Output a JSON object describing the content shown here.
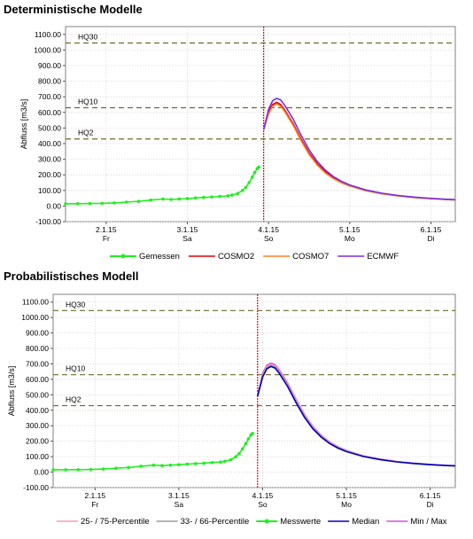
{
  "page": {
    "title_top": "Deterministische Modelle",
    "title_bottom": "Probabilistisches Modell"
  },
  "chart_data": [
    {
      "type": "line",
      "title": "Deterministische Modelle",
      "ylabel": "Abfluss [m3/s]",
      "ylim": [
        -100,
        1150
      ],
      "yticks": [
        -100,
        0,
        100,
        200,
        300,
        400,
        500,
        600,
        700,
        800,
        900,
        1000,
        1100
      ],
      "ytick_labels": [
        "-100.00",
        "0.00",
        "100.00",
        "200.00",
        "300.00",
        "400.00",
        "500.00",
        "600.00",
        "700.00",
        "800.00",
        "900.00",
        "1000.00",
        "1100.00"
      ],
      "xlim": [
        1.5,
        6.3
      ],
      "xticks": [
        2,
        3,
        4,
        5,
        6
      ],
      "xtick_dates": [
        "2.1.15",
        "3.1.15",
        "4.1.15",
        "5.1.15",
        "6.1.15"
      ],
      "xtick_days": [
        "Fr",
        "Sa",
        "So",
        "Mo",
        "Di"
      ],
      "grid": true,
      "forecast_start_x": 3.94,
      "thresholds": [
        {
          "name": "HQ30",
          "value": 1045,
          "color": "#6b6b2a"
        },
        {
          "name": "HQ10",
          "value": 630,
          "color": "#6b6b2a"
        },
        {
          "name": "HQ2",
          "value": 430,
          "color": "#6b6b2a"
        }
      ],
      "series": [
        {
          "name": "Gemessen",
          "color": "#22ee22",
          "markers": true,
          "x": [
            1.5,
            1.65,
            1.8,
            1.95,
            2.1,
            2.25,
            2.4,
            2.55,
            2.7,
            2.8,
            2.9,
            3.0,
            3.1,
            3.2,
            3.3,
            3.4,
            3.5,
            3.55,
            3.62,
            3.68,
            3.72,
            3.76,
            3.8,
            3.83,
            3.86,
            3.88
          ],
          "y": [
            15,
            15,
            16,
            17,
            20,
            25,
            30,
            38,
            45,
            42,
            45,
            48,
            52,
            55,
            58,
            62,
            65,
            70,
            80,
            100,
            120,
            150,
            185,
            215,
            240,
            250
          ]
        },
        {
          "name": "COSMO2",
          "color": "#e00000",
          "markers": false,
          "x": [
            3.94,
            4.0,
            4.05,
            4.1,
            4.15,
            4.2,
            4.3,
            4.4,
            4.5,
            4.6,
            4.7,
            4.8,
            4.9,
            5.0,
            5.2,
            5.4,
            5.6,
            5.8,
            6.0,
            6.2,
            6.3
          ],
          "y": [
            490,
            600,
            650,
            665,
            650,
            615,
            530,
            430,
            340,
            270,
            220,
            180,
            152,
            130,
            100,
            80,
            65,
            55,
            48,
            42,
            40
          ]
        },
        {
          "name": "COSMO7",
          "color": "#ff8020",
          "markers": false,
          "x": [
            3.94,
            4.0,
            4.05,
            4.1,
            4.15,
            4.2,
            4.3,
            4.4,
            4.5,
            4.6,
            4.7,
            4.8,
            4.9,
            5.0,
            5.2,
            5.4,
            5.6,
            5.8,
            6.0,
            6.2,
            6.3
          ],
          "y": [
            490,
            590,
            640,
            655,
            640,
            605,
            520,
            420,
            330,
            262,
            212,
            175,
            148,
            128,
            98,
            78,
            64,
            54,
            47,
            41,
            39
          ]
        },
        {
          "name": "ECMWF",
          "color": "#7a2de0",
          "markers": false,
          "x": [
            3.94,
            4.0,
            4.05,
            4.1,
            4.15,
            4.2,
            4.3,
            4.4,
            4.5,
            4.6,
            4.7,
            4.8,
            4.9,
            5.0,
            5.2,
            5.4,
            5.6,
            5.8,
            6.0,
            6.2,
            6.3
          ],
          "y": [
            490,
            620,
            675,
            690,
            680,
            645,
            560,
            455,
            360,
            285,
            230,
            188,
            158,
            135,
            103,
            82,
            67,
            57,
            49,
            43,
            41
          ]
        }
      ]
    },
    {
      "type": "line",
      "title": "Probabilistisches Modell",
      "ylabel": "Abfluss [m3/s]",
      "ylim": [
        -100,
        1150
      ],
      "yticks": [
        -100,
        0,
        100,
        200,
        300,
        400,
        500,
        600,
        700,
        800,
        900,
        1000,
        1100
      ],
      "ytick_labels": [
        "-100.00",
        "0.00",
        "100.00",
        "200.00",
        "300.00",
        "400.00",
        "500.00",
        "600.00",
        "700.00",
        "800.00",
        "900.00",
        "1000.00",
        "1100.00"
      ],
      "xlim": [
        1.5,
        6.3
      ],
      "xticks": [
        2,
        3,
        4,
        5,
        6
      ],
      "xtick_dates": [
        "2.1.15",
        "3.1.15",
        "4.1.15",
        "5.1.15",
        "6.1.15"
      ],
      "xtick_days": [
        "Fr",
        "Sa",
        "So",
        "Mo",
        "Di"
      ],
      "grid": true,
      "forecast_start_x": 3.94,
      "thresholds": [
        {
          "name": "HQ30",
          "value": 1045,
          "color": "#6b6b2a"
        },
        {
          "name": "HQ10",
          "value": 630,
          "color": "#6b6b2a"
        },
        {
          "name": "HQ2",
          "value": 430,
          "color": "#6b6b2a"
        }
      ],
      "legend": [
        {
          "name": "25- / 75-Percentile",
          "color": "#f2a0b0",
          "style": "line"
        },
        {
          "name": "33- / 66-Percentile",
          "color": "#9a9a9a",
          "style": "line"
        },
        {
          "name": "Messwerte",
          "color": "#22ee22",
          "style": "marker"
        },
        {
          "name": "Median",
          "color": "#0000c0",
          "style": "line"
        },
        {
          "name": "Min / Max",
          "color": "#d050d0",
          "style": "line"
        }
      ],
      "series": [
        {
          "name": "Messwerte",
          "color": "#22ee22",
          "markers": true,
          "x": [
            1.5,
            1.65,
            1.8,
            1.95,
            2.1,
            2.25,
            2.4,
            2.55,
            2.7,
            2.8,
            2.9,
            3.0,
            3.1,
            3.2,
            3.3,
            3.4,
            3.5,
            3.55,
            3.62,
            3.68,
            3.72,
            3.76,
            3.8,
            3.83,
            3.86,
            3.88
          ],
          "y": [
            15,
            15,
            16,
            17,
            20,
            25,
            30,
            38,
            45,
            42,
            45,
            48,
            52,
            55,
            58,
            62,
            65,
            70,
            80,
            100,
            120,
            150,
            185,
            215,
            240,
            250
          ]
        },
        {
          "name": "Min / Max",
          "color": "#d050d0",
          "markers": false,
          "x": [
            3.94,
            4.0,
            4.05,
            4.1,
            4.15,
            4.2,
            4.3,
            4.4,
            4.5,
            4.6,
            4.7,
            4.8,
            4.9,
            5.0,
            5.2,
            5.4,
            5.6,
            5.8,
            6.0,
            6.2,
            6.3
          ],
          "y": [
            490,
            640,
            690,
            705,
            695,
            660,
            575,
            470,
            372,
            295,
            238,
            195,
            163,
            140,
            106,
            85,
            69,
            58,
            50,
            44,
            42
          ]
        },
        {
          "name": "25- / 75-Percentile",
          "color": "#f2a0b0",
          "markers": false,
          "x": [
            3.94,
            4.0,
            4.05,
            4.1,
            4.15,
            4.2,
            4.3,
            4.4,
            4.5,
            4.6,
            4.7,
            4.8,
            4.9,
            5.0,
            5.2,
            5.4,
            5.6,
            5.8,
            6.0,
            6.2,
            6.3
          ],
          "y": [
            490,
            630,
            682,
            697,
            687,
            652,
            567,
            462,
            366,
            290,
            234,
            192,
            160,
            138,
            105,
            84,
            68,
            57,
            49,
            43,
            41
          ]
        },
        {
          "name": "33- / 66-Percentile",
          "color": "#9a9a9a",
          "markers": false,
          "x": [
            3.94,
            4.0,
            4.05,
            4.1,
            4.15,
            4.2,
            4.3,
            4.4,
            4.5,
            4.6,
            4.7,
            4.8,
            4.9,
            5.0,
            5.2,
            5.4,
            5.6,
            5.8,
            6.0,
            6.2,
            6.3
          ],
          "y": [
            490,
            622,
            675,
            690,
            680,
            645,
            560,
            455,
            360,
            285,
            230,
            188,
            158,
            135,
            103,
            82,
            67,
            57,
            49,
            43,
            41
          ]
        },
        {
          "name": "Median",
          "color": "#0000c0",
          "markers": false,
          "x": [
            3.94,
            4.0,
            4.05,
            4.1,
            4.15,
            4.2,
            4.3,
            4.4,
            4.5,
            4.6,
            4.7,
            4.8,
            4.9,
            5.0,
            5.2,
            5.4,
            5.6,
            5.8,
            6.0,
            6.2,
            6.3
          ],
          "y": [
            490,
            615,
            668,
            683,
            673,
            638,
            553,
            448,
            354,
            280,
            226,
            185,
            155,
            133,
            101,
            81,
            66,
            56,
            48,
            42,
            40
          ]
        }
      ]
    }
  ]
}
